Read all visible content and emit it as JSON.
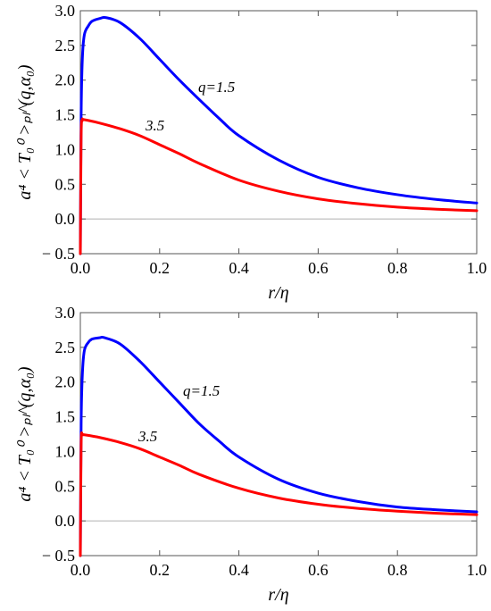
{
  "chart_data": [
    {
      "type": "line",
      "xlabel": "r/η",
      "ylabel": "a⁴ < T₀⁰ >ₚₗ^(q,α₀)",
      "xlim": [
        0,
        1.0
      ],
      "ylim": [
        -0.5,
        3.0
      ],
      "x_ticks": [
        "0.0",
        "0.2",
        "0.4",
        "0.6",
        "0.8",
        "1.0"
      ],
      "y_ticks": [
        "-0.5",
        "0.0",
        "0.5",
        "1.0",
        "1.5",
        "2.0",
        "2.5",
        "3.0"
      ],
      "grid": false,
      "series": [
        {
          "name": "q=1.5",
          "color": "#0000ff",
          "x": [
            0.0,
            0.002,
            0.005,
            0.01,
            0.02,
            0.03,
            0.05,
            0.065,
            0.1,
            0.15,
            0.2,
            0.25,
            0.3,
            0.35,
            0.4,
            0.5,
            0.6,
            0.7,
            0.8,
            0.9,
            1.0
          ],
          "y": [
            -0.5,
            1.5,
            2.3,
            2.65,
            2.78,
            2.85,
            2.89,
            2.9,
            2.83,
            2.6,
            2.3,
            2.0,
            1.72,
            1.45,
            1.2,
            0.85,
            0.6,
            0.45,
            0.35,
            0.28,
            0.23
          ]
        },
        {
          "name": "3.5",
          "color": "#ff0000",
          "x": [
            0.0,
            0.002,
            0.005,
            0.01,
            0.05,
            0.1,
            0.15,
            0.2,
            0.25,
            0.3,
            0.4,
            0.5,
            0.6,
            0.7,
            0.8,
            0.9,
            1.0
          ],
          "y": [
            -0.5,
            1.2,
            1.42,
            1.43,
            1.38,
            1.3,
            1.2,
            1.07,
            0.94,
            0.8,
            0.56,
            0.4,
            0.29,
            0.22,
            0.17,
            0.14,
            0.12
          ]
        }
      ],
      "annotations": [
        "q=1.5",
        "3.5"
      ]
    },
    {
      "type": "line",
      "xlabel": "r/η",
      "ylabel": "a⁴ < T₀⁰ >ₚₗ^(q,α₀)",
      "xlim": [
        0,
        1.0
      ],
      "ylim": [
        -0.5,
        3.0
      ],
      "x_ticks": [
        "0.0",
        "0.2",
        "0.4",
        "0.6",
        "0.8",
        "1.0"
      ],
      "y_ticks": [
        "-0.5",
        "0.0",
        "0.5",
        "1.0",
        "1.5",
        "2.0",
        "2.5",
        "3.0"
      ],
      "grid": false,
      "series": [
        {
          "name": "q=1.5",
          "color": "#0000ff",
          "x": [
            0.0,
            0.002,
            0.005,
            0.01,
            0.02,
            0.03,
            0.05,
            0.06,
            0.1,
            0.15,
            0.2,
            0.25,
            0.3,
            0.35,
            0.4,
            0.5,
            0.6,
            0.7,
            0.8,
            0.9,
            1.0
          ],
          "y": [
            -0.5,
            1.4,
            2.1,
            2.45,
            2.57,
            2.62,
            2.64,
            2.64,
            2.55,
            2.3,
            2.0,
            1.7,
            1.4,
            1.15,
            0.92,
            0.6,
            0.4,
            0.28,
            0.2,
            0.16,
            0.13
          ]
        },
        {
          "name": "3.5",
          "color": "#ff0000",
          "x": [
            0.0,
            0.002,
            0.005,
            0.01,
            0.05,
            0.1,
            0.15,
            0.2,
            0.25,
            0.3,
            0.4,
            0.5,
            0.6,
            0.7,
            0.8,
            0.9,
            1.0
          ],
          "y": [
            -0.5,
            1.1,
            1.24,
            1.24,
            1.2,
            1.13,
            1.04,
            0.92,
            0.8,
            0.67,
            0.47,
            0.33,
            0.24,
            0.18,
            0.14,
            0.11,
            0.09
          ]
        }
      ],
      "annotations": [
        "q=1.5",
        "3.5"
      ]
    }
  ]
}
